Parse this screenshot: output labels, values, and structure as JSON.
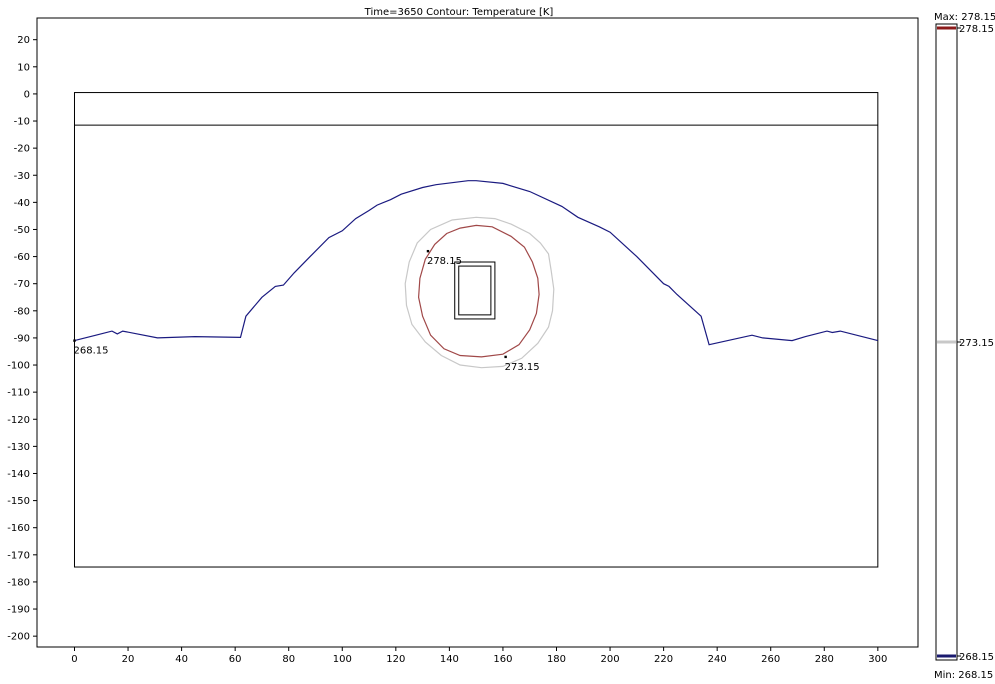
{
  "chart_data": {
    "type": "line",
    "title": "Time=3650    Contour: Temperature [K]",
    "xlabel": "",
    "ylabel": "",
    "xlim": [
      -14,
      315
    ],
    "ylim": [
      -204,
      28
    ],
    "xticks": [
      0,
      20,
      40,
      60,
      80,
      100,
      120,
      140,
      160,
      180,
      200,
      220,
      240,
      260,
      280,
      300
    ],
    "yticks": [
      20,
      10,
      0,
      -10,
      -20,
      -30,
      -40,
      -50,
      -60,
      -70,
      -80,
      -90,
      -100,
      -110,
      -120,
      -130,
      -140,
      -150,
      -160,
      -170,
      -180,
      -190,
      -200
    ],
    "grid": false,
    "geometry": {
      "domain": {
        "x": [
          0,
          300
        ],
        "y": [
          -174.5,
          0.5
        ]
      },
      "layer_line_y": -11.5,
      "pipe_outer": {
        "x": [
          142,
          157
        ],
        "y": [
          -83,
          -62
        ]
      },
      "pipe_inner": {
        "x": [
          143.5,
          155.5
        ],
        "y": [
          -81.5,
          -63.5
        ]
      }
    },
    "contours": [
      {
        "level": "268.15",
        "color": "#1a1a80",
        "points": [
          [
            0,
            -91
          ],
          [
            8,
            -89
          ],
          [
            14,
            -87.5
          ],
          [
            16,
            -88.5
          ],
          [
            18,
            -87.5
          ],
          [
            31,
            -90
          ],
          [
            45,
            -89.5
          ],
          [
            62,
            -89.8
          ],
          [
            64,
            -82
          ],
          [
            70,
            -75
          ],
          [
            75,
            -71
          ],
          [
            78,
            -70.5
          ],
          [
            82,
            -66
          ],
          [
            88,
            -60
          ],
          [
            95,
            -53
          ],
          [
            100,
            -50.5
          ],
          [
            105,
            -46
          ],
          [
            110,
            -43
          ],
          [
            113,
            -41
          ],
          [
            118,
            -39
          ],
          [
            122,
            -37
          ],
          [
            130,
            -34.5
          ],
          [
            135,
            -33.5
          ],
          [
            147,
            -32
          ],
          [
            150,
            -32
          ],
          [
            160,
            -33
          ],
          [
            170,
            -36
          ],
          [
            182,
            -41.5
          ],
          [
            188,
            -45.5
          ],
          [
            196,
            -49
          ],
          [
            200,
            -51
          ],
          [
            210,
            -60
          ],
          [
            220,
            -70
          ],
          [
            222,
            -71
          ],
          [
            225,
            -74
          ],
          [
            234,
            -82
          ],
          [
            237,
            -92.5
          ],
          [
            253,
            -89
          ],
          [
            257,
            -90
          ],
          [
            268,
            -91
          ],
          [
            273,
            -89.5
          ],
          [
            281,
            -87.5
          ],
          [
            283,
            -88
          ],
          [
            286,
            -87.5
          ],
          [
            300,
            -91
          ]
        ]
      },
      {
        "level": "273.15",
        "color": "#c8c8c8",
        "points": [
          [
            150,
            -45.5
          ],
          [
            157,
            -46
          ],
          [
            163,
            -48
          ],
          [
            170,
            -51.5
          ],
          [
            174,
            -55
          ],
          [
            177,
            -59
          ],
          [
            178,
            -65
          ],
          [
            179,
            -72
          ],
          [
            178.5,
            -80
          ],
          [
            177,
            -86
          ],
          [
            173,
            -92
          ],
          [
            167,
            -97.5
          ],
          [
            160,
            -100.5
          ],
          [
            152,
            -101
          ],
          [
            144,
            -100
          ],
          [
            137,
            -96.5
          ],
          [
            131,
            -91.5
          ],
          [
            126,
            -85
          ],
          [
            124,
            -78
          ],
          [
            123.5,
            -70
          ],
          [
            125,
            -62
          ],
          [
            128,
            -55
          ],
          [
            133,
            -50
          ],
          [
            141,
            -46.5
          ]
        ]
      },
      {
        "level": "278.15",
        "color": "#a04848",
        "points": [
          [
            150,
            -48.5
          ],
          [
            156,
            -49
          ],
          [
            163,
            -52.5
          ],
          [
            168,
            -56.5
          ],
          [
            171,
            -62
          ],
          [
            173,
            -68
          ],
          [
            173.5,
            -74
          ],
          [
            172.5,
            -81
          ],
          [
            170,
            -87
          ],
          [
            166,
            -92.5
          ],
          [
            160,
            -96
          ],
          [
            152,
            -97
          ],
          [
            144,
            -96.5
          ],
          [
            138,
            -94
          ],
          [
            133,
            -89
          ],
          [
            130,
            -82
          ],
          [
            128.5,
            -75
          ],
          [
            129,
            -68
          ],
          [
            131,
            -61
          ],
          [
            134.5,
            -55.5
          ],
          [
            139,
            -51.5
          ],
          [
            144,
            -49.5
          ]
        ]
      }
    ],
    "annotations": [
      {
        "text": "268.15",
        "at": [
          0,
          -91
        ]
      },
      {
        "text": "278.15",
        "at": [
          132,
          -58
        ]
      },
      {
        "text": "273.15",
        "at": [
          161,
          -97
        ]
      }
    ],
    "colorbar": {
      "max_label": "Max: 278.15",
      "min_label": "Min: 268.15",
      "ticks": [
        {
          "value": 278.15,
          "label": "278.15",
          "color": "#8b1a1a"
        },
        {
          "value": 273.15,
          "label": "273.15",
          "color": "#c8c8c8"
        },
        {
          "value": 268.15,
          "label": "268.15",
          "color": "#1a1a6e"
        }
      ],
      "range": [
        268.15,
        278.15
      ]
    }
  }
}
